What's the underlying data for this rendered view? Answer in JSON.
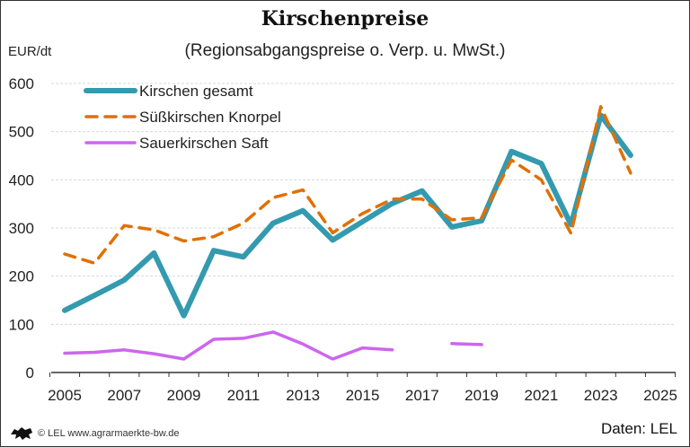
{
  "chart_data": {
    "type": "line",
    "title": "Kirschenpreise",
    "subtitle": "(Regionsabgangspreise o. Verp. u. MwSt.)",
    "ylabel": "EUR/dt",
    "xlabel": "",
    "ylim": [
      0,
      600
    ],
    "xlim": [
      2005,
      2025
    ],
    "y_ticks": [
      "0",
      "100",
      "200",
      "300",
      "400",
      "500",
      "600"
    ],
    "x_ticks": [
      "2005",
      "2007",
      "2009",
      "2011",
      "2013",
      "2015",
      "2017",
      "2019",
      "2021",
      "2023",
      "2025"
    ],
    "grid": "horizontal dashed",
    "legend_position": "top-left",
    "x": [
      2005,
      2006,
      2007,
      2008,
      2009,
      2010,
      2011,
      2012,
      2013,
      2014,
      2015,
      2016,
      2017,
      2018,
      2019,
      2020,
      2021,
      2022,
      2023,
      2024
    ],
    "series": [
      {
        "name": "Kirschen gesamt",
        "color": "#339aaf",
        "style": "solid-thick",
        "values": [
          129,
          160,
          192,
          248,
          118,
          253,
          240,
          310,
          336,
          275,
          313,
          351,
          377,
          302,
          315,
          459,
          434,
          307,
          534,
          451
        ]
      },
      {
        "name": "Süßkirschen Knorpel",
        "color": "#e07000",
        "style": "dashed",
        "values": [
          246,
          227,
          305,
          296,
          273,
          282,
          310,
          363,
          379,
          290,
          330,
          360,
          360,
          317,
          321,
          441,
          400,
          289,
          552,
          414
        ]
      },
      {
        "name": "Sauerkirschen Saft",
        "color": "#cc66ee",
        "style": "solid-thin",
        "values": [
          40,
          42,
          47,
          39,
          28,
          69,
          71,
          84,
          59,
          28,
          51,
          47,
          null,
          60,
          58,
          null,
          null,
          null,
          null,
          null
        ]
      }
    ]
  },
  "footer": {
    "source": "Daten: LEL",
    "copyright": "© LEL www.agrarmaerkte-bw.de"
  }
}
